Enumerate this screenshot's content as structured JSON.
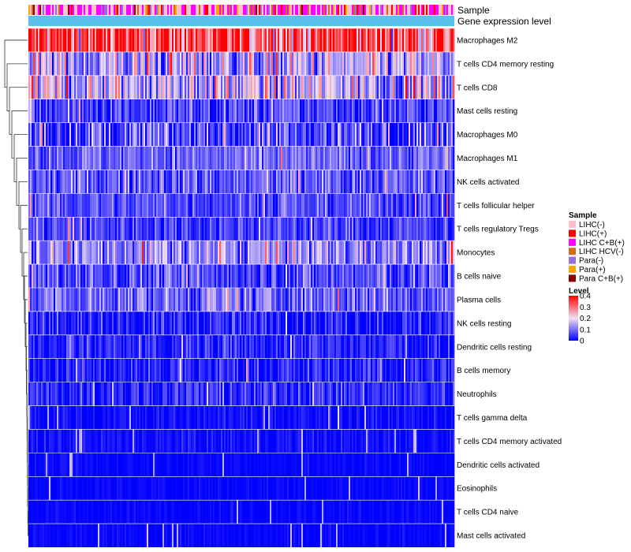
{
  "chart_data": {
    "type": "heatmap",
    "title": "",
    "annotations": {
      "sample_label": "Sample",
      "level_label": "Gene expression level",
      "level_color": "#5bc0eb"
    },
    "rows": [
      {
        "label": "Macrophages M2",
        "mean": 0.33,
        "spread": 0.1
      },
      {
        "label": "T cells CD4 memory resting",
        "mean": 0.14,
        "spread": 0.08
      },
      {
        "label": "T cells CD8",
        "mean": 0.16,
        "spread": 0.08
      },
      {
        "label": "Mast cells resting",
        "mean": 0.06,
        "spread": 0.05
      },
      {
        "label": "Macrophages M0",
        "mean": 0.07,
        "spread": 0.07
      },
      {
        "label": "Macrophages M1",
        "mean": 0.09,
        "spread": 0.04
      },
      {
        "label": "NK cells activated",
        "mean": 0.08,
        "spread": 0.05
      },
      {
        "label": "T cells follicular helper",
        "mean": 0.07,
        "spread": 0.04
      },
      {
        "label": "T cells regulatory  Tregs",
        "mean": 0.06,
        "spread": 0.04
      },
      {
        "label": "Monocytes",
        "mean": 0.12,
        "spread": 0.06
      },
      {
        "label": "B cells naive",
        "mean": 0.07,
        "spread": 0.05
      },
      {
        "label": "Plasma cells",
        "mean": 0.09,
        "spread": 0.05
      },
      {
        "label": "NK cells resting",
        "mean": 0.03,
        "spread": 0.04
      },
      {
        "label": "Dendritic cells resting",
        "mean": 0.03,
        "spread": 0.04
      },
      {
        "label": "B cells memory",
        "mean": 0.03,
        "spread": 0.04
      },
      {
        "label": "Neutrophils",
        "mean": 0.04,
        "spread": 0.04
      },
      {
        "label": "T cells gamma delta",
        "mean": 0.01,
        "spread": 0.02
      },
      {
        "label": "T cells CD4 memory activated",
        "mean": 0.01,
        "spread": 0.02
      },
      {
        "label": "Dendritic cells activated",
        "mean": 0.005,
        "spread": 0.01
      },
      {
        "label": "Eosinophils",
        "mean": 0.005,
        "spread": 0.01
      },
      {
        "label": "T cells CD4 naive",
        "mean": 0.005,
        "spread": 0.01
      },
      {
        "label": "Mast cells activated",
        "mean": 0.005,
        "spread": 0.01
      }
    ],
    "n_samples": 270,
    "color_scale": {
      "title": "Level",
      "min": 0,
      "max": 0.4,
      "stops": [
        {
          "value": 0,
          "color": "#0000ff"
        },
        {
          "value": 0.2,
          "color": "#f2dff2"
        },
        {
          "value": 0.4,
          "color": "#ff0000"
        }
      ],
      "ticks": [
        "0.4",
        "0.3",
        "0.2",
        "0.1",
        "0"
      ]
    },
    "sample_legend": {
      "title": "Sample",
      "items": [
        {
          "label": "LIHC(-)",
          "color": "#ffc0cb"
        },
        {
          "label": "LIHC(+)",
          "color": "#ff0000"
        },
        {
          "label": "LIHC C+B(+)",
          "color": "#ff00ff"
        },
        {
          "label": "LIHC HCV(-)",
          "color": "#d2691e"
        },
        {
          "label": "Para(-)",
          "color": "#9370db"
        },
        {
          "label": "Para(+)",
          "color": "#ffa500"
        },
        {
          "label": "Para C+B(+)",
          "color": "#8b0000"
        }
      ],
      "weights": [
        0.34,
        0.12,
        0.34,
        0.08,
        0.06,
        0.04,
        0.02
      ]
    },
    "dendrogram": {
      "merges": [
        [
          0,
          -1
        ],
        [
          1,
          -1
        ],
        [
          2,
          -1
        ],
        [
          3,
          -1
        ],
        [
          4,
          -1
        ],
        [
          5,
          -1
        ],
        [
          6,
          -1
        ],
        [
          7,
          -1
        ],
        [
          8,
          -1
        ],
        [
          9,
          -1
        ],
        [
          10,
          -1
        ]
      ]
    }
  }
}
